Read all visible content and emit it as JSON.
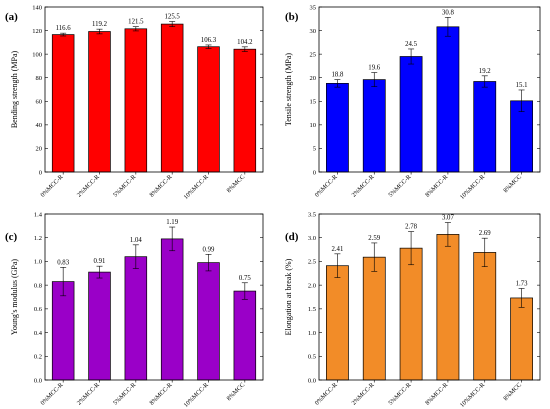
{
  "chart_data": [
    {
      "panel": "(a)",
      "type": "bar",
      "categories": [
        "0%MCC-R",
        "2%MCC-R",
        "5%MCC-R",
        "8%MCC-R",
        "10%MCC-R",
        "8%MCC"
      ],
      "values": [
        116.6,
        119.2,
        121.5,
        125.5,
        106.3,
        104.2
      ],
      "value_labels": [
        "116.6",
        "119.2",
        "121.5",
        "125.5",
        "106.3",
        "104.2"
      ],
      "errors": [
        1.2,
        2.0,
        1.8,
        2.2,
        1.5,
        2.0
      ],
      "ylabel": "Bending strength (MPa)",
      "ylim": [
        0,
        140
      ],
      "yticks": [
        0,
        20,
        40,
        60,
        80,
        100,
        120,
        140
      ],
      "ytick_labels": [
        "0",
        "20",
        "40",
        "60",
        "80",
        "100",
        "120",
        "140"
      ],
      "color": "#ff0000"
    },
    {
      "panel": "(b)",
      "type": "bar",
      "categories": [
        "0%MCC-R",
        "2%MCC-R",
        "5%MCC-R",
        "8%MCC-R",
        "10%MCC-R",
        "8%MCC"
      ],
      "values": [
        18.8,
        19.6,
        24.5,
        30.8,
        19.2,
        15.1
      ],
      "value_labels": [
        "18.8",
        "19.6",
        "24.5",
        "30.8",
        "19.2",
        "15.1"
      ],
      "errors": [
        0.8,
        1.5,
        1.6,
        2.0,
        1.2,
        2.3
      ],
      "ylabel": "Tensile strength (MPa)",
      "ylim": [
        0,
        35
      ],
      "yticks": [
        0,
        5,
        10,
        15,
        20,
        25,
        30,
        35
      ],
      "ytick_labels": [
        "0",
        "5",
        "10",
        "15",
        "20",
        "25",
        "30",
        "35"
      ],
      "color": "#0000ff"
    },
    {
      "panel": "(c)",
      "type": "bar",
      "categories": [
        "0%MCC-R",
        "2%MCC-R",
        "5%MCC-R",
        "8%MCC-R",
        "10%MCC-R",
        "8%MCC"
      ],
      "values": [
        0.83,
        0.91,
        1.04,
        1.19,
        0.99,
        0.75
      ],
      "value_labels": [
        "0.83",
        "0.91",
        "1.04",
        "1.19",
        "0.99",
        "0.75"
      ],
      "errors": [
        0.12,
        0.05,
        0.1,
        0.1,
        0.07,
        0.07
      ],
      "ylabel": "Young's modulus (GPa)",
      "ylim": [
        0,
        1.4
      ],
      "yticks": [
        0,
        0.2,
        0.4,
        0.6,
        0.8,
        1.0,
        1.2,
        1.4
      ],
      "ytick_labels": [
        "0.0",
        "0.2",
        "0.4",
        "0.6",
        "0.8",
        "1.0",
        "1.2",
        "1.4"
      ],
      "color": "#9a00c8"
    },
    {
      "panel": "(d)",
      "type": "bar",
      "categories": [
        "0%MCC-R",
        "2%MCC-R",
        "5%MCC-R",
        "8%MCC-R",
        "10%MCC-R",
        "8%MCC"
      ],
      "values": [
        2.41,
        2.59,
        2.78,
        3.07,
        2.69,
        1.73
      ],
      "value_labels": [
        "2.41",
        "2.59",
        "2.78",
        "3.07",
        "2.69",
        "1.73"
      ],
      "errors": [
        0.25,
        0.3,
        0.35,
        0.25,
        0.3,
        0.2
      ],
      "ylabel": "Elongation at break (%)",
      "ylim": [
        0,
        3.5
      ],
      "yticks": [
        0,
        0.5,
        1.0,
        1.5,
        2.0,
        2.5,
        3.0,
        3.5
      ],
      "ytick_labels": [
        "0.0",
        "0.5",
        "1.0",
        "1.5",
        "2.0",
        "2.5",
        "3.0",
        "3.5"
      ],
      "color": "#f28c28"
    }
  ]
}
